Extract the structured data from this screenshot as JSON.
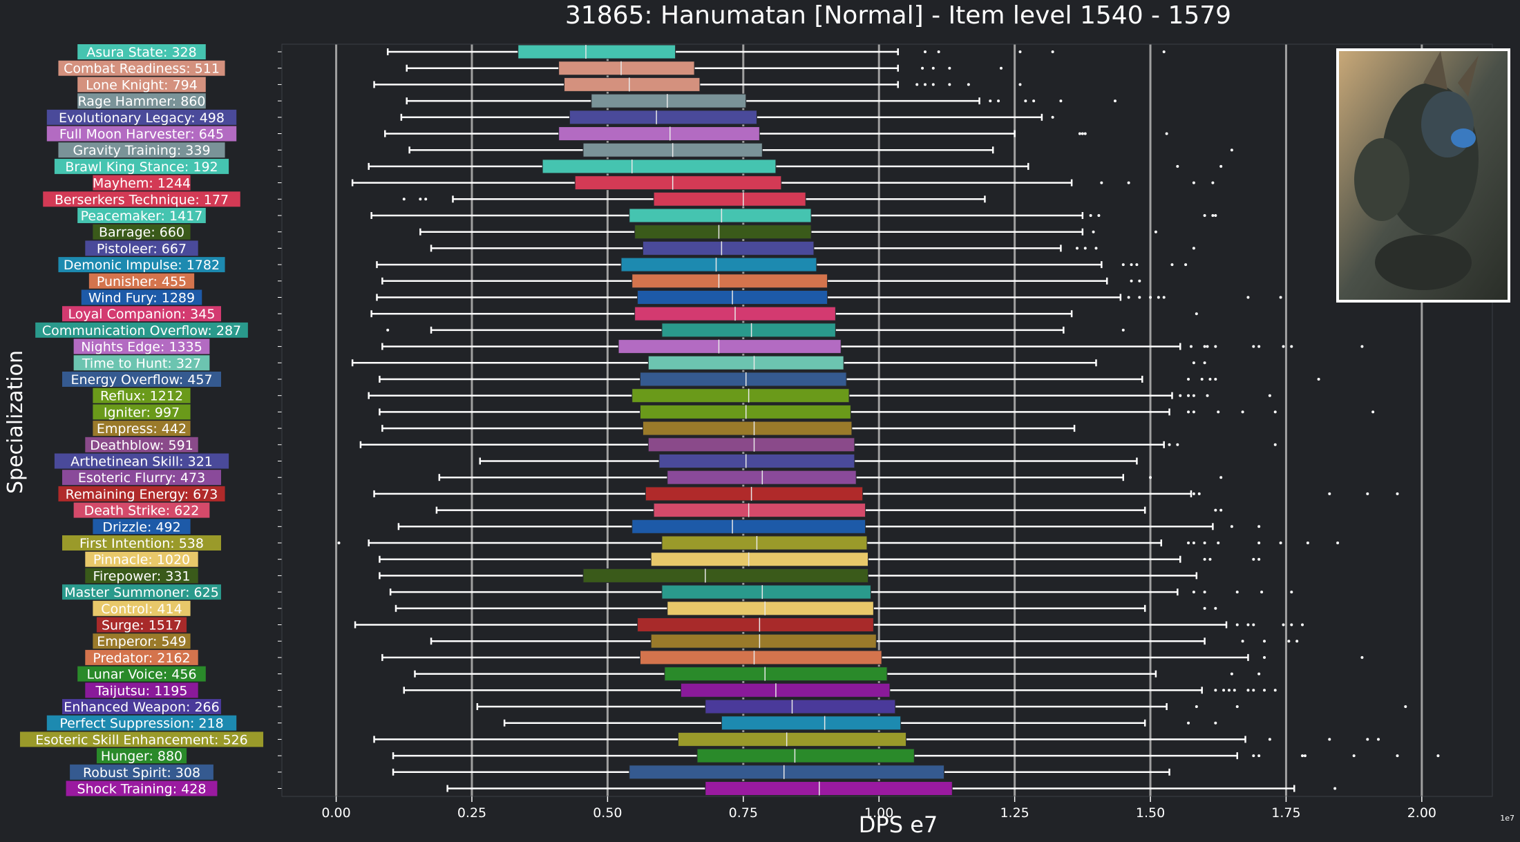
{
  "chart_data": {
    "type": "boxplot",
    "title": "31865: Hanumatan [Normal] - Item level 1540 - 1579",
    "xlabel": "DPS e7",
    "ylabel": "Specialization",
    "offset_label": "1e7",
    "xlim": [
      -0.1,
      2.13
    ],
    "xticks": [
      0.0,
      0.25,
      0.5,
      0.75,
      1.0,
      1.25,
      1.5,
      1.75,
      2.0
    ],
    "xtick_labels": [
      "0.00",
      "0.25",
      "0.50",
      "0.75",
      "1.00",
      "1.25",
      "1.50",
      "1.75",
      "2.00"
    ],
    "grid": "vertical",
    "background": "#212327",
    "series": [
      {
        "name": "Asura State: 328",
        "color": "#45c4b0",
        "whisker_low": 0.095,
        "q1": 0.335,
        "median": 0.46,
        "q3": 0.625,
        "whisker_high": 1.035,
        "fliers": [
          1.085,
          1.11,
          1.26,
          1.32,
          1.525
        ]
      },
      {
        "name": "Combat Readiness: 511",
        "color": "#d4917e",
        "whisker_low": 0.13,
        "q1": 0.41,
        "median": 0.525,
        "q3": 0.66,
        "whisker_high": 1.035,
        "fliers": [
          1.08,
          1.1,
          1.13,
          1.225
        ]
      },
      {
        "name": "Lone Knight: 794",
        "color": "#d4917e",
        "whisker_low": 0.07,
        "q1": 0.42,
        "median": 0.54,
        "q3": 0.67,
        "whisker_high": 1.035,
        "fliers": [
          1.07,
          1.085,
          1.1,
          1.13,
          1.165,
          1.26
        ]
      },
      {
        "name": "Rage Hammer: 860",
        "color": "#7a9398",
        "whisker_low": 0.13,
        "q1": 0.47,
        "median": 0.61,
        "q3": 0.755,
        "whisker_high": 1.185,
        "fliers": [
          1.205,
          1.22,
          1.27,
          1.285,
          1.335,
          1.435
        ]
      },
      {
        "name": "Evolutionary Legacy: 498",
        "color": "#4a4a9a",
        "whisker_low": 0.12,
        "q1": 0.43,
        "median": 0.59,
        "q3": 0.775,
        "whisker_high": 1.3,
        "fliers": [
          1.32
        ]
      },
      {
        "name": "Full Moon Harvester: 645",
        "color": "#b36bc2",
        "whisker_low": 0.09,
        "q1": 0.41,
        "median": 0.615,
        "q3": 0.78,
        "whisker_high": 1.25,
        "fliers": [
          1.37,
          1.375,
          1.38,
          1.53
        ]
      },
      {
        "name": "Gravity Training: 339",
        "color": "#7a9398",
        "whisker_low": 0.135,
        "q1": 0.455,
        "median": 0.62,
        "q3": 0.785,
        "whisker_high": 1.21,
        "fliers": [
          1.65
        ]
      },
      {
        "name": "Brawl King Stance: 192",
        "color": "#45c4b0",
        "whisker_low": 0.06,
        "q1": 0.38,
        "median": 0.545,
        "q3": 0.81,
        "whisker_high": 1.275,
        "fliers": [
          1.55,
          1.63
        ]
      },
      {
        "name": "Mayhem: 1244",
        "color": "#d33a55",
        "whisker_low": 0.03,
        "q1": 0.44,
        "median": 0.62,
        "q3": 0.82,
        "whisker_high": 1.355,
        "fliers": [
          1.41,
          1.46,
          1.58,
          1.615
        ]
      },
      {
        "name": "Berserkers Technique: 177",
        "color": "#d33a55",
        "whisker_low": 0.215,
        "q1": 0.585,
        "median": 0.75,
        "q3": 0.865,
        "whisker_high": 1.195,
        "fliers": [
          0.125,
          0.155,
          0.165
        ]
      },
      {
        "name": "Peacemaker: 1417",
        "color": "#45c4b0",
        "whisker_low": 0.065,
        "q1": 0.54,
        "median": 0.71,
        "q3": 0.875,
        "whisker_high": 1.375,
        "fliers": [
          1.39,
          1.405,
          1.6,
          1.615,
          1.62
        ]
      },
      {
        "name": "Barrage: 660",
        "color": "#3a5a1a",
        "whisker_low": 0.155,
        "q1": 0.55,
        "median": 0.705,
        "q3": 0.875,
        "whisker_high": 1.375,
        "fliers": [
          1.395,
          1.51
        ]
      },
      {
        "name": "Pistoleer: 667",
        "color": "#4a4a9a",
        "whisker_low": 0.175,
        "q1": 0.565,
        "median": 0.71,
        "q3": 0.88,
        "whisker_high": 1.335,
        "fliers": [
          1.365,
          1.38,
          1.4,
          1.58
        ]
      },
      {
        "name": "Demonic Impulse: 1782",
        "color": "#1d8ab0",
        "whisker_low": 0.075,
        "q1": 0.525,
        "median": 0.7,
        "q3": 0.885,
        "whisker_high": 1.41,
        "fliers": [
          1.45,
          1.465,
          1.475,
          1.54,
          1.565
        ]
      },
      {
        "name": "Punisher: 455",
        "color": "#d4744d",
        "whisker_low": 0.085,
        "q1": 0.545,
        "median": 0.705,
        "q3": 0.905,
        "whisker_high": 1.42,
        "fliers": [
          1.465,
          1.48
        ]
      },
      {
        "name": "Wind Fury: 1289",
        "color": "#1d5aa8",
        "whisker_low": 0.075,
        "q1": 0.555,
        "median": 0.73,
        "q3": 0.905,
        "whisker_high": 1.445,
        "fliers": [
          1.46,
          1.48,
          1.5,
          1.515,
          1.525,
          1.68,
          1.74
        ]
      },
      {
        "name": "Loyal Companion: 345",
        "color": "#d33a70",
        "whisker_low": 0.065,
        "q1": 0.55,
        "median": 0.735,
        "q3": 0.92,
        "whisker_high": 1.355,
        "fliers": [
          1.585
        ]
      },
      {
        "name": "Communication Overflow: 287",
        "color": "#2a9a8c",
        "whisker_low": 0.175,
        "q1": 0.6,
        "median": 0.765,
        "q3": 0.92,
        "whisker_high": 1.34,
        "fliers": [
          0.095,
          1.45
        ]
      },
      {
        "name": "Nights Edge: 1335",
        "color": "#b36bc2",
        "whisker_low": 0.085,
        "q1": 0.52,
        "median": 0.705,
        "q3": 0.93,
        "whisker_high": 1.555,
        "fliers": [
          1.575,
          1.6,
          1.605,
          1.62,
          1.69,
          1.7,
          1.745,
          1.76,
          1.89
        ]
      },
      {
        "name": "Time to Hunt: 327",
        "color": "#6cc4b0",
        "whisker_low": 0.03,
        "q1": 0.575,
        "median": 0.77,
        "q3": 0.935,
        "whisker_high": 1.4,
        "fliers": [
          1.58,
          1.6
        ]
      },
      {
        "name": "Energy Overflow: 457",
        "color": "#355a90",
        "whisker_low": 0.08,
        "q1": 0.56,
        "median": 0.755,
        "q3": 0.94,
        "whisker_high": 1.485,
        "fliers": [
          1.57,
          1.595,
          1.61,
          1.62,
          1.81
        ]
      },
      {
        "name": "Reflux: 1212",
        "color": "#6a9a1a",
        "whisker_low": 0.06,
        "q1": 0.545,
        "median": 0.76,
        "q3": 0.945,
        "whisker_high": 1.54,
        "fliers": [
          1.555,
          1.57,
          1.58,
          1.605,
          1.72
        ]
      },
      {
        "name": "Igniter: 997",
        "color": "#6a9a1a",
        "whisker_low": 0.08,
        "q1": 0.56,
        "median": 0.755,
        "q3": 0.948,
        "whisker_high": 1.535,
        "fliers": [
          1.57,
          1.58,
          1.625,
          1.67,
          1.73,
          1.91
        ]
      },
      {
        "name": "Empress: 442",
        "color": "#9a7a2a",
        "whisker_low": 0.085,
        "q1": 0.565,
        "median": 0.77,
        "q3": 0.95,
        "whisker_high": 1.36,
        "fliers": []
      },
      {
        "name": "Deathblow: 591",
        "color": "#8a4a8a",
        "whisker_low": 0.045,
        "q1": 0.575,
        "median": 0.77,
        "q3": 0.955,
        "whisker_high": 1.525,
        "fliers": [
          1.535,
          1.55,
          1.73
        ]
      },
      {
        "name": "Arthetinean Skill: 321",
        "color": "#4a4a9a",
        "whisker_low": 0.265,
        "q1": 0.595,
        "median": 0.755,
        "q3": 0.955,
        "whisker_high": 1.475,
        "fliers": []
      },
      {
        "name": "Esoteric Flurry: 473",
        "color": "#8a4a9a",
        "whisker_low": 0.19,
        "q1": 0.61,
        "median": 0.785,
        "q3": 0.958,
        "whisker_high": 1.45,
        "fliers": [
          1.5,
          1.63
        ]
      },
      {
        "name": "Remaining Energy: 673",
        "color": "#b02a2a",
        "whisker_low": 0.07,
        "q1": 0.57,
        "median": 0.765,
        "q3": 0.97,
        "whisker_high": 1.575,
        "fliers": [
          1.58,
          1.59,
          1.83,
          1.9,
          1.955
        ]
      },
      {
        "name": "Death Strike: 622",
        "color": "#d44a6a",
        "whisker_low": 0.185,
        "q1": 0.585,
        "median": 0.76,
        "q3": 0.975,
        "whisker_high": 1.49,
        "fliers": [
          1.62,
          1.63
        ]
      },
      {
        "name": "Drizzle: 492",
        "color": "#1d5aa8",
        "whisker_low": 0.115,
        "q1": 0.545,
        "median": 0.73,
        "q3": 0.975,
        "whisker_high": 1.615,
        "fliers": [
          1.65,
          1.7
        ]
      },
      {
        "name": "First Intention: 538",
        "color": "#9a9a2a",
        "whisker_low": 0.06,
        "q1": 0.6,
        "median": 0.775,
        "q3": 0.978,
        "whisker_high": 1.52,
        "fliers": [
          0.005,
          1.57,
          1.58,
          1.6,
          1.625,
          1.7,
          1.74,
          1.79,
          1.845
        ]
      },
      {
        "name": "Pinnacle: 1020",
        "color": "#e8c86a",
        "whisker_low": 0.08,
        "q1": 0.58,
        "median": 0.76,
        "q3": 0.98,
        "whisker_high": 1.555,
        "fliers": [
          1.6,
          1.61,
          1.69,
          1.7
        ]
      },
      {
        "name": "Firepower: 331",
        "color": "#3a5a1a",
        "whisker_low": 0.08,
        "q1": 0.455,
        "median": 0.68,
        "q3": 0.98,
        "whisker_high": 1.585,
        "fliers": []
      },
      {
        "name": "Master Summoner: 625",
        "color": "#2a9a8c",
        "whisker_low": 0.1,
        "q1": 0.6,
        "median": 0.785,
        "q3": 0.985,
        "whisker_high": 1.55,
        "fliers": [
          1.58,
          1.6,
          1.66,
          1.705,
          1.76
        ]
      },
      {
        "name": "Control: 414",
        "color": "#e8c86a",
        "whisker_low": 0.11,
        "q1": 0.61,
        "median": 0.79,
        "q3": 0.99,
        "whisker_high": 1.49,
        "fliers": [
          1.6,
          1.62
        ]
      },
      {
        "name": "Surge: 1517",
        "color": "#a82a2a",
        "whisker_low": 0.035,
        "q1": 0.555,
        "median": 0.78,
        "q3": 0.99,
        "whisker_high": 1.64,
        "fliers": [
          1.66,
          1.68,
          1.69,
          1.745,
          1.76,
          1.78
        ]
      },
      {
        "name": "Emperor: 549",
        "color": "#9a7a2a",
        "whisker_low": 0.175,
        "q1": 0.58,
        "median": 0.78,
        "q3": 0.995,
        "whisker_high": 1.6,
        "fliers": [
          1.67,
          1.71,
          1.755,
          1.77
        ]
      },
      {
        "name": "Predator: 2162",
        "color": "#d4744d",
        "whisker_low": 0.085,
        "q1": 0.56,
        "median": 0.77,
        "q3": 1.005,
        "whisker_high": 1.68,
        "fliers": [
          1.71,
          1.89
        ]
      },
      {
        "name": "Lunar Voice: 456",
        "color": "#2a8a2a",
        "whisker_low": 0.145,
        "q1": 0.605,
        "median": 0.79,
        "q3": 1.015,
        "whisker_high": 1.51,
        "fliers": [
          1.65,
          1.7
        ]
      },
      {
        "name": "Taijutsu: 1195",
        "color": "#8a1a9a",
        "whisker_low": 0.125,
        "q1": 0.635,
        "median": 0.81,
        "q3": 1.02,
        "whisker_high": 1.595,
        "fliers": [
          1.62,
          1.635,
          1.645,
          1.655,
          1.68,
          1.69,
          1.71,
          1.73
        ]
      },
      {
        "name": "Enhanced Weapon: 266",
        "color": "#4a3a9a",
        "whisker_low": 0.26,
        "q1": 0.68,
        "median": 0.84,
        "q3": 1.03,
        "whisker_high": 1.53,
        "fliers": [
          1.585,
          1.66,
          1.97
        ]
      },
      {
        "name": "Perfect Suppression: 218",
        "color": "#1d8ab0",
        "whisker_low": 0.31,
        "q1": 0.71,
        "median": 0.9,
        "q3": 1.04,
        "whisker_high": 1.49,
        "fliers": [
          1.57,
          1.62
        ]
      },
      {
        "name": "Esoteric Skill Enhancement: 526",
        "color": "#9a9a2a",
        "whisker_low": 0.07,
        "q1": 0.63,
        "median": 0.83,
        "q3": 1.05,
        "whisker_high": 1.675,
        "fliers": [
          1.72,
          1.83,
          1.9,
          1.92
        ]
      },
      {
        "name": "Hunger: 880",
        "color": "#2a8a2a",
        "whisker_low": 0.105,
        "q1": 0.665,
        "median": 0.845,
        "q3": 1.065,
        "whisker_high": 1.66,
        "fliers": [
          1.69,
          1.7,
          1.78,
          1.785,
          1.875,
          1.955,
          2.03
        ]
      },
      {
        "name": "Robust Spirit: 308",
        "color": "#355a90",
        "whisker_low": 0.105,
        "q1": 0.54,
        "median": 0.825,
        "q3": 1.12,
        "whisker_high": 1.535,
        "fliers": []
      },
      {
        "name": "Shock Training: 428",
        "color": "#9a1aa0",
        "whisker_low": 0.205,
        "q1": 0.68,
        "median": 0.89,
        "q3": 1.135,
        "whisker_high": 1.765,
        "fliers": [
          1.84
        ]
      }
    ]
  }
}
